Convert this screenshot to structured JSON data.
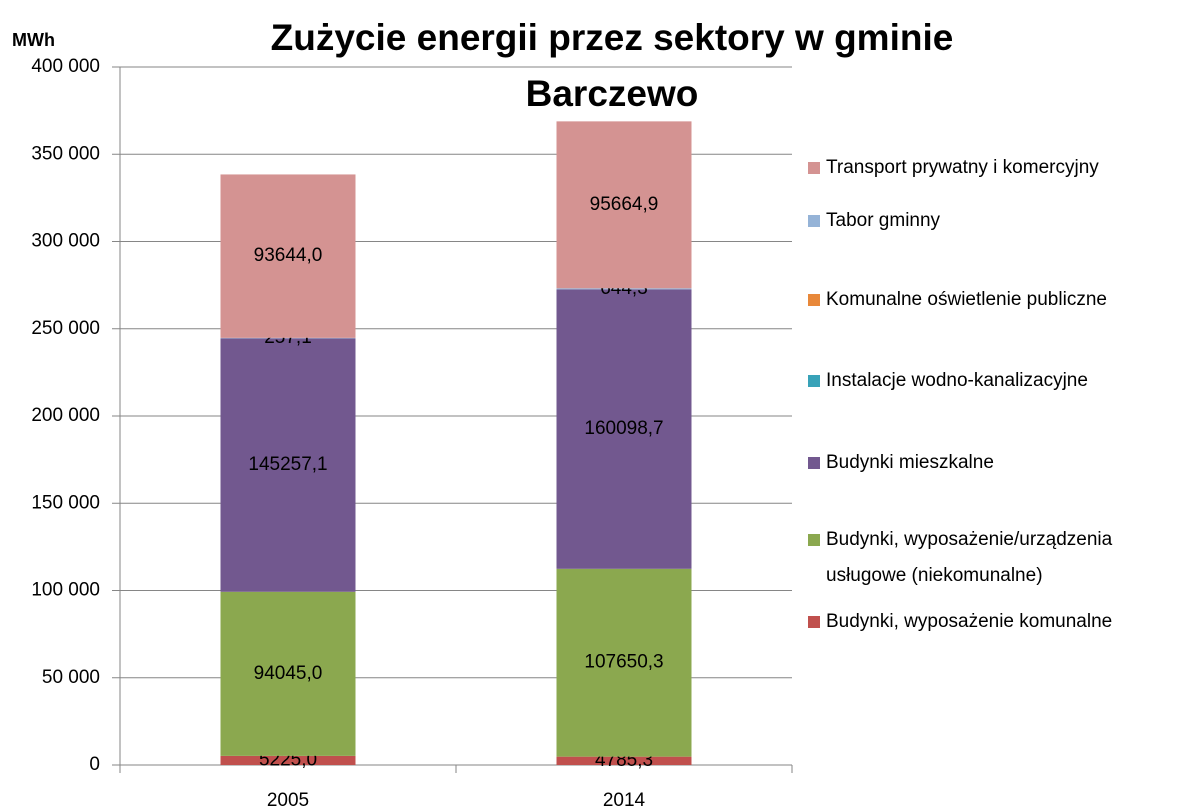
{
  "chart_data": {
    "type": "stacked_bar",
    "title": "Zużycie energii przez sektory w gminie Barczewo",
    "y_label": "MWh",
    "categories": [
      "2005",
      "2014"
    ],
    "series": [
      {
        "name": "Budynki, wyposażenie komunalne",
        "color": "#c0504d",
        "values": [
          5225.0,
          4785.3
        ],
        "value_labels": [
          "5225,0",
          "4785,3"
        ]
      },
      {
        "name": "Budynki, wyposażenie/urządzenia usługowe (niekomunalne)",
        "color": "#8ba84f",
        "values": [
          94045.0,
          107650.3
        ],
        "value_labels": [
          "94045,0",
          "107650,3"
        ]
      },
      {
        "name": "Budynki mieszkalne",
        "color": "#72588f",
        "values": [
          145257.1,
          160098.7
        ],
        "value_labels": [
          "145257,1",
          "160098,7"
        ]
      },
      {
        "name": "Instalacje wodno-kanalizacyjne",
        "color": "#38a2b8",
        "values": [
          0,
          0
        ]
      },
      {
        "name": "Komunalne oświetlenie publiczne",
        "color": "#e8883a",
        "values": [
          0,
          0
        ]
      },
      {
        "name": "Tabor gminny",
        "color": "#95b3d7",
        "values": [
          257.1,
          644.3
        ],
        "value_labels": [
          "257,1",
          "644,3"
        ]
      },
      {
        "name": "Transport prywatny i komercyjny",
        "color": "#d49392",
        "values": [
          93644.0,
          95664.9
        ],
        "value_labels": [
          "93644,0",
          "95664,9"
        ]
      }
    ],
    "ylim": [
      0,
      400000
    ],
    "yticks": [
      0,
      {
        "value": 50000,
        "label": "50 000"
      },
      {
        "value": 100000,
        "label": "100 000"
      },
      {
        "value": 150000,
        "label": "150 000"
      },
      {
        "value": 200000,
        "label": "200 000"
      },
      {
        "value": 250000,
        "label": "250 000"
      },
      {
        "value": 300000,
        "label": "300 000"
      },
      {
        "value": 350000,
        "label": "350 000"
      },
      {
        "value": 400000,
        "label": "400 000"
      }
    ],
    "grid": true,
    "legend": "right"
  }
}
